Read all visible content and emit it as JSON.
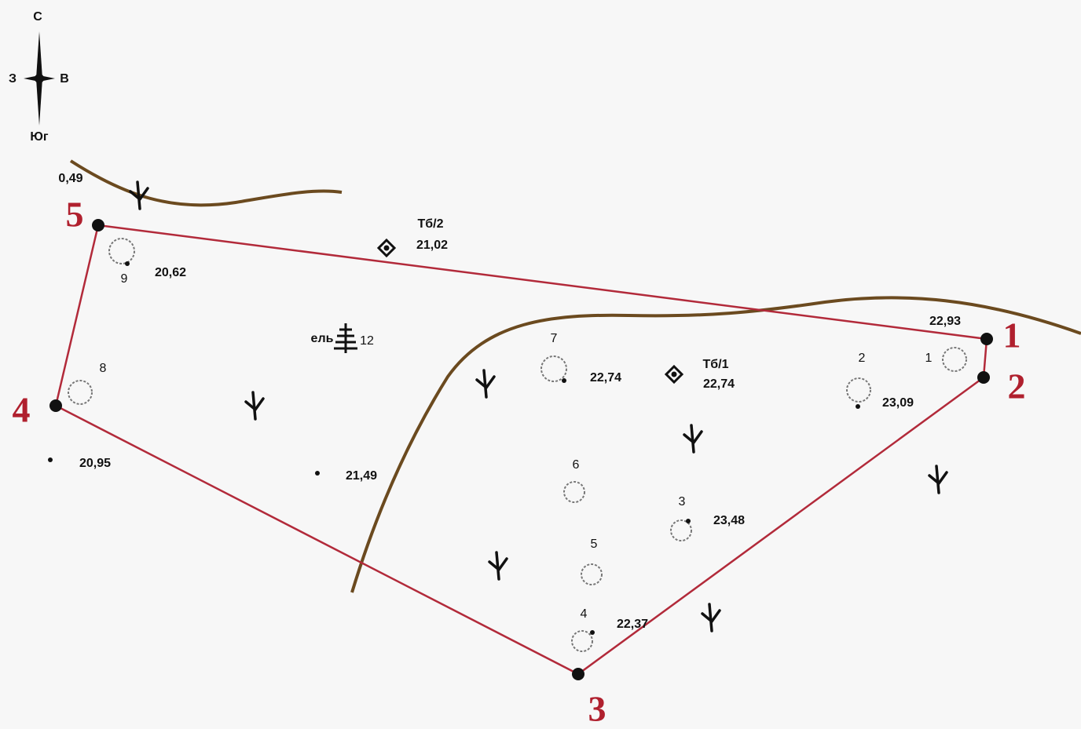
{
  "compass": {
    "north": "С",
    "west": "З",
    "east": "В",
    "south": "Юг"
  },
  "boundary_points": [
    "1",
    "2",
    "3",
    "4",
    "5"
  ],
  "elevations": [
    "0,49",
    "20,62",
    "22,93",
    "22,74",
    "23,09",
    "20,95",
    "21,49",
    "23,48",
    "22,37"
  ],
  "benchmarks": [
    {
      "label": "Тб/2",
      "elevation": "21,02"
    },
    {
      "label": "Тб/1",
      "elevation": "22,74"
    }
  ],
  "trees": [
    "1",
    "2",
    "3",
    "4",
    "5",
    "6",
    "7",
    "8",
    "9"
  ],
  "spruce": {
    "label": "ель",
    "number": "12"
  }
}
